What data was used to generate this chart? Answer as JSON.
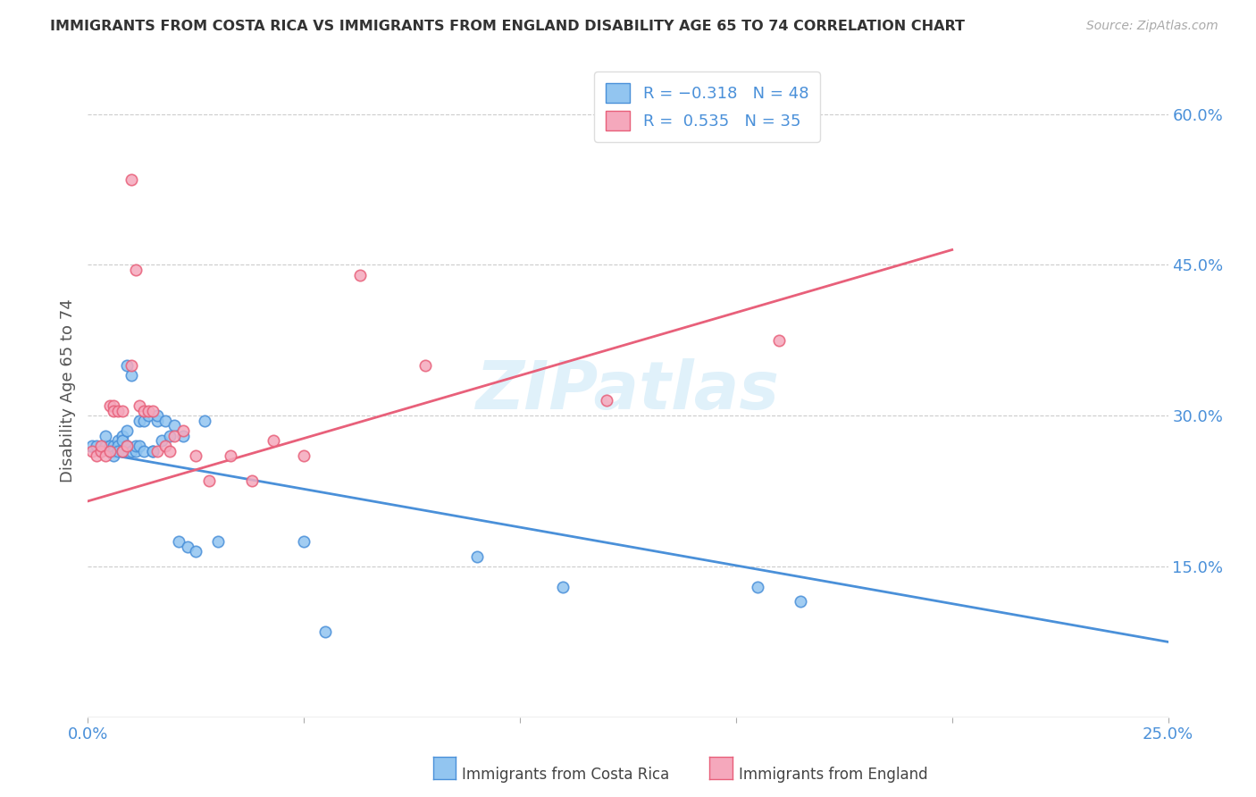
{
  "title": "IMMIGRANTS FROM COSTA RICA VS IMMIGRANTS FROM ENGLAND DISABILITY AGE 65 TO 74 CORRELATION CHART",
  "source": "Source: ZipAtlas.com",
  "ylabel": "Disability Age 65 to 74",
  "xlim": [
    0.0,
    0.25
  ],
  "ylim": [
    0.0,
    0.65
  ],
  "y_ticks_right": [
    0.15,
    0.3,
    0.45,
    0.6
  ],
  "y_ticks_right_labels": [
    "15.0%",
    "30.0%",
    "45.0%",
    "60.0%"
  ],
  "x_tick_positions": [
    0.0,
    0.05,
    0.1,
    0.15,
    0.2,
    0.25
  ],
  "x_tick_labels": [
    "0.0%",
    "",
    "",
    "",
    "",
    "25.0%"
  ],
  "watermark": "ZIPatlas",
  "color_costa_rica": "#92c5f0",
  "color_england": "#f5a8bc",
  "line_color_costa_rica": "#4a90d9",
  "line_color_england": "#e8607a",
  "background_color": "#ffffff",
  "grid_color": "#cccccc",
  "blue_trend_x0": 0.0,
  "blue_trend_y0": 0.265,
  "blue_trend_x1": 0.25,
  "blue_trend_y1": 0.075,
  "pink_trend_x0": 0.0,
  "pink_trend_y0": 0.215,
  "pink_trend_x1": 0.2,
  "pink_trend_y1": 0.465,
  "costa_rica_x": [
    0.001,
    0.002,
    0.003,
    0.004,
    0.004,
    0.005,
    0.005,
    0.006,
    0.006,
    0.006,
    0.007,
    0.007,
    0.007,
    0.008,
    0.008,
    0.008,
    0.009,
    0.009,
    0.009,
    0.01,
    0.01,
    0.011,
    0.011,
    0.012,
    0.012,
    0.013,
    0.013,
    0.014,
    0.015,
    0.015,
    0.016,
    0.016,
    0.017,
    0.018,
    0.019,
    0.02,
    0.021,
    0.022,
    0.023,
    0.025,
    0.027,
    0.03,
    0.05,
    0.055,
    0.09,
    0.11,
    0.155,
    0.165
  ],
  "costa_rica_y": [
    0.27,
    0.27,
    0.265,
    0.27,
    0.28,
    0.265,
    0.27,
    0.27,
    0.265,
    0.26,
    0.275,
    0.27,
    0.265,
    0.28,
    0.265,
    0.275,
    0.35,
    0.285,
    0.27,
    0.34,
    0.265,
    0.265,
    0.27,
    0.295,
    0.27,
    0.295,
    0.265,
    0.3,
    0.265,
    0.265,
    0.295,
    0.3,
    0.275,
    0.295,
    0.28,
    0.29,
    0.175,
    0.28,
    0.17,
    0.165,
    0.295,
    0.175,
    0.175,
    0.085,
    0.16,
    0.13,
    0.13,
    0.115
  ],
  "england_x": [
    0.001,
    0.002,
    0.003,
    0.003,
    0.004,
    0.005,
    0.005,
    0.006,
    0.006,
    0.007,
    0.008,
    0.008,
    0.009,
    0.01,
    0.01,
    0.011,
    0.012,
    0.013,
    0.014,
    0.015,
    0.016,
    0.018,
    0.019,
    0.02,
    0.022,
    0.025,
    0.028,
    0.033,
    0.038,
    0.043,
    0.05,
    0.063,
    0.078,
    0.12,
    0.16
  ],
  "england_y": [
    0.265,
    0.26,
    0.265,
    0.27,
    0.26,
    0.31,
    0.265,
    0.31,
    0.305,
    0.305,
    0.265,
    0.305,
    0.27,
    0.535,
    0.35,
    0.445,
    0.31,
    0.305,
    0.305,
    0.305,
    0.265,
    0.27,
    0.265,
    0.28,
    0.285,
    0.26,
    0.235,
    0.26,
    0.235,
    0.275,
    0.26,
    0.44,
    0.35,
    0.315,
    0.375
  ]
}
